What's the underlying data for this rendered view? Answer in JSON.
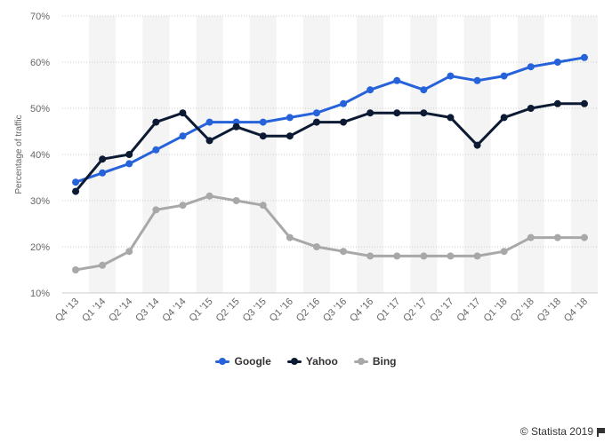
{
  "chart_data": {
    "type": "line",
    "ylabel": "Percentage of traffic",
    "ylim": [
      10,
      70
    ],
    "yticks": [
      "10%",
      "20%",
      "30%",
      "40%",
      "50%",
      "60%",
      "70%"
    ],
    "ytick_values": [
      10,
      20,
      30,
      40,
      50,
      60,
      70
    ],
    "grid": true,
    "legend_position": "bottom",
    "categories": [
      "Q4 '13",
      "Q1 '14",
      "Q2 '14",
      "Q3 '14",
      "Q4 '14",
      "Q1 '15",
      "Q2 '15",
      "Q3 '15",
      "Q1 '16",
      "Q2 '16",
      "Q3 '16",
      "Q4 '16",
      "Q1 '17",
      "Q2 '17",
      "Q3 '17",
      "Q4 '17",
      "Q1 '18",
      "Q2 '18",
      "Q3 '18",
      "Q4 '18"
    ],
    "series": [
      {
        "name": "Google",
        "color": "#2662d9",
        "values": [
          34,
          36,
          38,
          41,
          44,
          47,
          47,
          47,
          48,
          49,
          51,
          54,
          56,
          54,
          57,
          56,
          57,
          59,
          60,
          61
        ]
      },
      {
        "name": "Yahoo",
        "color": "#0c1a33",
        "values": [
          32,
          39,
          40,
          47,
          49,
          43,
          46,
          44,
          44,
          47,
          47,
          49,
          49,
          49,
          48,
          42,
          48,
          50,
          51,
          51
        ]
      },
      {
        "name": "Bing",
        "color": "#a8a8a8",
        "values": [
          15,
          16,
          19,
          28,
          29,
          31,
          30,
          29,
          22,
          20,
          19,
          18,
          18,
          18,
          18,
          18,
          19,
          22,
          22,
          22
        ]
      }
    ]
  },
  "credit": {
    "text": "© Statista 2019",
    "icon": "flag-icon"
  }
}
